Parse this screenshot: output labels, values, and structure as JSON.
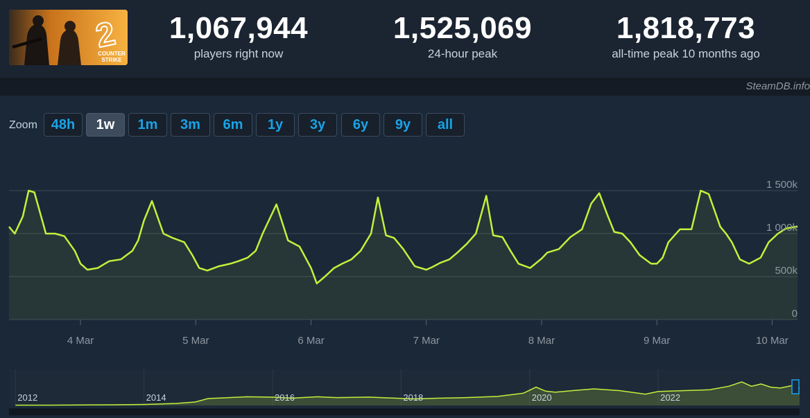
{
  "stats": [
    {
      "value": "1,067,944",
      "label": "players right now"
    },
    {
      "value": "1,525,069",
      "label": "24-hour peak"
    },
    {
      "value": "1,818,773",
      "label": "all-time peak 10 months ago"
    }
  ],
  "game_title": "COUNTER STRIKE 2",
  "credit": "SteamDB.info",
  "zoom": {
    "label": "Zoom",
    "options": [
      "48h",
      "1w",
      "1m",
      "3m",
      "6m",
      "1y",
      "3y",
      "6y",
      "9y",
      "all"
    ],
    "active": "1w"
  },
  "colors": {
    "series": "#c2f13b",
    "accent": "#1aa3e8",
    "background": "#1b2838"
  },
  "chart_data": {
    "type": "line",
    "ylim": [
      0,
      1500000
    ],
    "y_ticks": [
      0,
      500000,
      1000000,
      1500000
    ],
    "y_tick_labels": [
      "0",
      "500k",
      "1 000k",
      "1 500k"
    ],
    "x_ticks": [
      "4 Mar",
      "5 Mar",
      "6 Mar",
      "7 Mar",
      "8 Mar",
      "9 Mar",
      "10 Mar"
    ],
    "x_tick_values": [
      1,
      2,
      3,
      4,
      5,
      6,
      7
    ],
    "xlim": [
      0.38,
      7.22
    ],
    "grid": true,
    "series": [
      {
        "x": [
          0.38,
          0.43,
          0.5,
          0.55,
          0.6,
          0.7,
          0.78,
          0.86,
          0.95,
          1.0,
          1.06,
          1.15,
          1.2,
          1.25,
          1.35,
          1.45,
          1.5,
          1.55,
          1.62,
          1.72,
          1.8,
          1.9,
          1.97,
          2.03,
          2.1,
          2.2,
          2.3,
          2.37,
          2.45,
          2.52,
          2.58,
          2.7,
          2.8,
          2.9,
          3.0,
          3.05,
          3.12,
          3.2,
          3.27,
          3.35,
          3.43,
          3.52,
          3.58,
          3.65,
          3.72,
          3.8,
          3.9,
          4.0,
          4.05,
          4.12,
          4.2,
          4.27,
          4.35,
          4.43,
          4.52,
          4.58,
          4.66,
          4.73,
          4.8,
          4.9,
          5.0,
          5.05,
          5.15,
          5.25,
          5.35,
          5.43,
          5.5,
          5.57,
          5.63,
          5.7,
          5.77,
          5.85,
          5.95,
          6.0,
          6.05,
          6.1,
          6.2,
          6.3,
          6.38,
          6.45,
          6.55,
          6.6,
          6.65,
          6.72,
          6.8,
          6.9,
          6.97,
          7.05,
          7.12,
          7.2,
          7.22
        ],
        "y": [
          1080000,
          1000000,
          1200000,
          1500000,
          1480000,
          1000000,
          1000000,
          970000,
          800000,
          650000,
          580000,
          600000,
          640000,
          680000,
          700000,
          800000,
          920000,
          1150000,
          1380000,
          1000000,
          950000,
          900000,
          750000,
          600000,
          570000,
          620000,
          650000,
          680000,
          720000,
          800000,
          1000000,
          1340000,
          920000,
          850000,
          600000,
          420000,
          500000,
          600000,
          650000,
          700000,
          800000,
          1000000,
          1420000,
          980000,
          950000,
          820000,
          620000,
          580000,
          610000,
          660000,
          700000,
          780000,
          880000,
          1000000,
          1440000,
          980000,
          960000,
          800000,
          650000,
          600000,
          710000,
          780000,
          820000,
          960000,
          1050000,
          1350000,
          1470000,
          1220000,
          1020000,
          1000000,
          900000,
          750000,
          650000,
          650000,
          720000,
          900000,
          1050000,
          1050000,
          1500000,
          1460000,
          1080000,
          1000000,
          900000,
          700000,
          650000,
          720000,
          900000,
          1000000,
          1060000,
          1080000,
          1080000
        ]
      }
    ],
    "navigator": {
      "x_ticks": [
        "2012",
        "2014",
        "2016",
        "2018",
        "2020",
        "2022"
      ],
      "x_tick_values": [
        2012,
        2014,
        2016,
        2018,
        2020,
        2022
      ],
      "xlim": [
        2011.9,
        2024.2
      ],
      "ylim": [
        0,
        1900000
      ],
      "x": [
        2012.0,
        2012.5,
        2013.0,
        2013.5,
        2014.0,
        2014.5,
        2014.8,
        2015.0,
        2015.2,
        2015.6,
        2016.0,
        2016.3,
        2016.7,
        2017.0,
        2017.5,
        2017.9,
        2018.2,
        2018.6,
        2019.0,
        2019.5,
        2019.9,
        2020.1,
        2020.25,
        2020.4,
        2020.7,
        2021.0,
        2021.4,
        2021.8,
        2022.0,
        2022.4,
        2022.8,
        2023.1,
        2023.3,
        2023.45,
        2023.6,
        2023.75,
        2023.9,
        2024.1,
        2024.2
      ],
      "y": [
        20000,
        20000,
        30000,
        40000,
        60000,
        120000,
        200000,
        400000,
        430000,
        500000,
        480000,
        420000,
        500000,
        450000,
        480000,
        420000,
        380000,
        420000,
        450000,
        520000,
        700000,
        1050000,
        820000,
        760000,
        860000,
        950000,
        850000,
        650000,
        800000,
        850000,
        900000,
        1100000,
        1350000,
        1100000,
        1230000,
        1050000,
        1000000,
        1150000,
        1000000
      ]
    }
  }
}
